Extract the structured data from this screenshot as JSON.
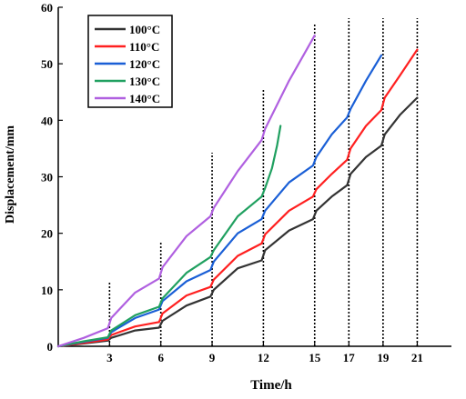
{
  "chart_data": {
    "type": "line",
    "title": "",
    "xlabel": "Time/h",
    "ylabel": "Displacement/mm",
    "xlim": [
      0,
      23
    ],
    "ylim": [
      0,
      60
    ],
    "x_ticks": [
      3,
      6,
      9,
      12,
      15,
      17,
      19,
      21
    ],
    "y_ticks": [
      0,
      10,
      20,
      30,
      40,
      50,
      60
    ],
    "vlines": [
      3,
      6,
      9,
      12,
      15,
      17,
      19,
      21
    ],
    "legend_position": "top-left",
    "grid": false,
    "series": [
      {
        "name": "100°C",
        "color": "#333333",
        "x": [
          0,
          1.5,
          2.9,
          3.1,
          4.5,
          5.9,
          6.1,
          7.5,
          8.9,
          9.1,
          10.5,
          11.9,
          12.1,
          13.5,
          14.9,
          15.1,
          16.0,
          16.9,
          17.1,
          18.0,
          18.9,
          19.1,
          20.0,
          21.0
        ],
        "y": [
          0,
          0.5,
          1.0,
          1.5,
          2.8,
          3.3,
          4.5,
          7.2,
          8.8,
          10.0,
          13.8,
          15.2,
          17.0,
          20.5,
          22.5,
          24.0,
          26.5,
          28.5,
          30.5,
          33.5,
          35.5,
          37.5,
          41.0,
          44.0
        ]
      },
      {
        "name": "110°C",
        "color": "#ff2020",
        "x": [
          0,
          1.5,
          2.9,
          3.1,
          4.5,
          5.9,
          6.1,
          7.5,
          8.9,
          9.1,
          10.5,
          11.9,
          12.1,
          13.5,
          14.9,
          15.1,
          16.0,
          16.9,
          17.1,
          18.0,
          18.9,
          19.1,
          20.0,
          21.0
        ],
        "y": [
          0,
          0.6,
          1.2,
          2.0,
          3.5,
          4.3,
          5.8,
          9.0,
          10.5,
          11.8,
          16.0,
          18.2,
          19.8,
          24.0,
          26.5,
          27.8,
          30.5,
          33.0,
          35.0,
          39.0,
          41.8,
          44.0,
          48.0,
          52.5
        ]
      },
      {
        "name": "120°C",
        "color": "#1a5fd6",
        "x": [
          0,
          1.5,
          2.9,
          3.1,
          4.5,
          5.9,
          6.1,
          7.5,
          8.9,
          9.1,
          10.5,
          11.9,
          12.1,
          13.5,
          14.9,
          15.1,
          16.0,
          16.9,
          17.1,
          18.0,
          18.9
        ],
        "y": [
          0,
          0.8,
          1.5,
          2.5,
          5.0,
          6.5,
          8.0,
          11.5,
          13.5,
          15.0,
          20.0,
          22.5,
          24.0,
          29.0,
          32.0,
          33.5,
          37.5,
          40.5,
          42.0,
          47.0,
          51.5
        ]
      },
      {
        "name": "130°C",
        "color": "#20a060",
        "x": [
          0,
          1.5,
          2.9,
          3.1,
          4.5,
          5.9,
          6.1,
          7.5,
          8.9,
          9.1,
          10.5,
          11.9,
          12.1,
          12.5,
          12.8,
          13.0
        ],
        "y": [
          0,
          0.9,
          1.6,
          2.8,
          5.5,
          7.0,
          8.5,
          13.0,
          15.8,
          17.0,
          23.0,
          26.5,
          28.0,
          31.5,
          35.5,
          39.0
        ]
      },
      {
        "name": "140°C",
        "color": "#b060e0",
        "x": [
          0,
          1.5,
          2.9,
          3.1,
          4.5,
          5.9,
          6.1,
          7.5,
          8.9,
          9.1,
          10.5,
          11.9,
          12.1,
          13.5,
          15.0
        ],
        "y": [
          0,
          1.5,
          3.2,
          5.0,
          9.5,
          12.0,
          14.0,
          19.5,
          23.0,
          24.5,
          31.0,
          36.5,
          38.5,
          47.0,
          55.0
        ]
      }
    ]
  }
}
